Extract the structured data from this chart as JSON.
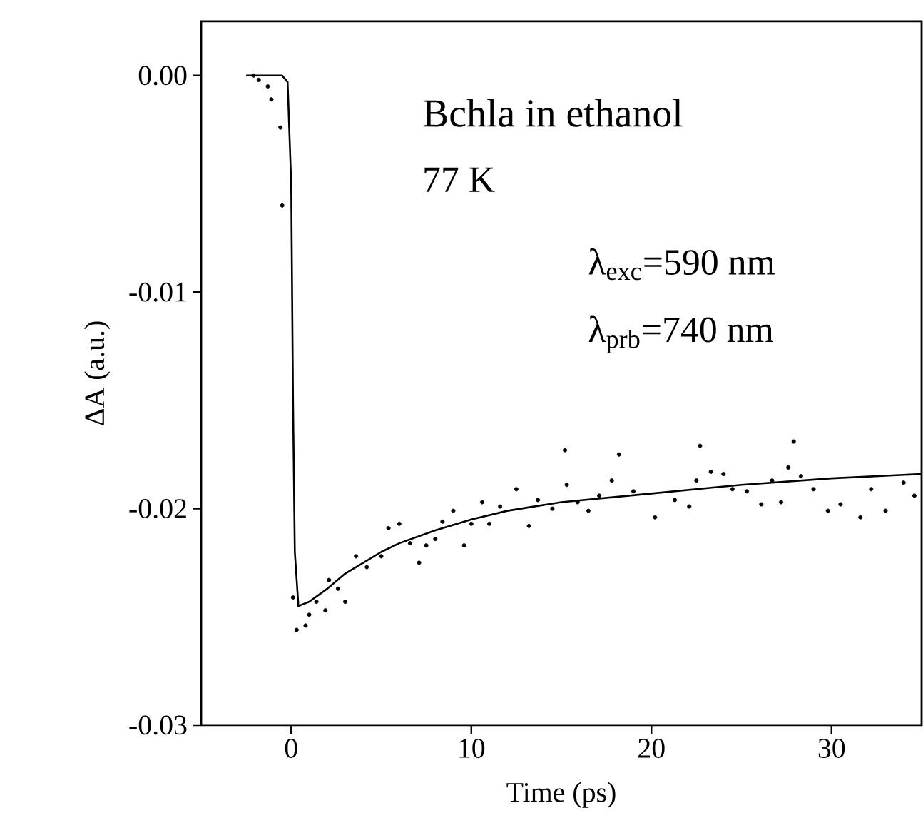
{
  "chart_data": {
    "type": "scatter",
    "xlabel": "Time (ps)",
    "ylabel": "ΔA (a.u.)",
    "xlim": [
      -5,
      35
    ],
    "ylim": [
      -0.03,
      0.0025
    ],
    "xticks": [
      0,
      10,
      20,
      30
    ],
    "yticks": [
      {
        "value": 0,
        "label": "0.00"
      },
      {
        "value": -0.01,
        "label": "-0.01"
      },
      {
        "value": -0.02,
        "label": "-0.02"
      },
      {
        "value": -0.03,
        "label": "-0.03"
      }
    ],
    "annotations": [
      "Bchla in ethanol",
      "77 K",
      "λ$_{exc}$=590 nm",
      "λ$_{prb}$=740 nm"
    ],
    "series": [
      {
        "marker": "circle",
        "color": "#000000",
        "x": [
          -2.1,
          -1.8,
          -1.3,
          -1.1,
          -0.6,
          -0.5,
          0.1,
          0.3,
          0.8,
          1.0,
          1.4,
          1.9,
          2.1,
          2.6,
          3.0,
          3.6,
          4.2,
          5.0,
          5.4,
          6.0,
          6.6,
          7.1,
          7.5,
          8.0,
          8.4,
          9.0,
          9.6,
          10.0,
          10.6,
          11.0,
          11.6,
          12.5,
          13.2,
          13.7,
          14.5,
          15.2,
          15.3,
          15.9,
          16.5,
          17.1,
          17.8,
          18.2,
          19.0,
          20.2,
          21.3,
          22.1,
          22.5,
          22.7,
          23.3,
          24.0,
          24.5,
          25.3,
          26.1,
          26.7,
          27.2,
          27.6,
          27.9,
          28.3,
          29.0,
          29.8,
          30.5,
          31.6,
          32.2,
          33.0,
          34.0,
          34.6
        ],
        "values": [
          0.0,
          -0.0002,
          -0.0005,
          -0.0011,
          -0.0024,
          -0.006,
          -0.0241,
          -0.0256,
          -0.0254,
          -0.0249,
          -0.0243,
          -0.0247,
          -0.0233,
          -0.0237,
          -0.0243,
          -0.0222,
          -0.0227,
          -0.0222,
          -0.0209,
          -0.0207,
          -0.0216,
          -0.0225,
          -0.0217,
          -0.0214,
          -0.0206,
          -0.0201,
          -0.0217,
          -0.0207,
          -0.0197,
          -0.0207,
          -0.0199,
          -0.0191,
          -0.0208,
          -0.0196,
          -0.02,
          -0.0173,
          -0.0189,
          -0.0197,
          -0.0201,
          -0.0194,
          -0.0187,
          -0.0175,
          -0.0192,
          -0.0204,
          -0.0196,
          -0.0199,
          -0.0187,
          -0.0171,
          -0.0183,
          -0.0184,
          -0.0191,
          -0.0192,
          -0.0198,
          -0.0187,
          -0.0197,
          -0.0181,
          -0.0169,
          -0.0185,
          -0.0191,
          -0.0201,
          -0.0198,
          -0.0204,
          -0.0191,
          -0.0201,
          -0.0188,
          -0.0194
        ]
      },
      {
        "type": "line",
        "marker": "none",
        "line_style": "solid",
        "color": "#000000",
        "x": [
          -2.5,
          -0.5,
          -0.2,
          0,
          0.1,
          0.2,
          0.4,
          1,
          2,
          3,
          4,
          5,
          6,
          8,
          10,
          12,
          15,
          20,
          25,
          30,
          35
        ],
        "values": [
          0.0,
          0.0,
          -0.0003,
          -0.005,
          -0.015,
          -0.022,
          -0.0245,
          -0.0243,
          -0.0237,
          -0.023,
          -0.0225,
          -0.022,
          -0.0216,
          -0.021,
          -0.0205,
          -0.0201,
          -0.0197,
          -0.0193,
          -0.0189,
          -0.0186,
          -0.0184
        ]
      }
    ]
  }
}
